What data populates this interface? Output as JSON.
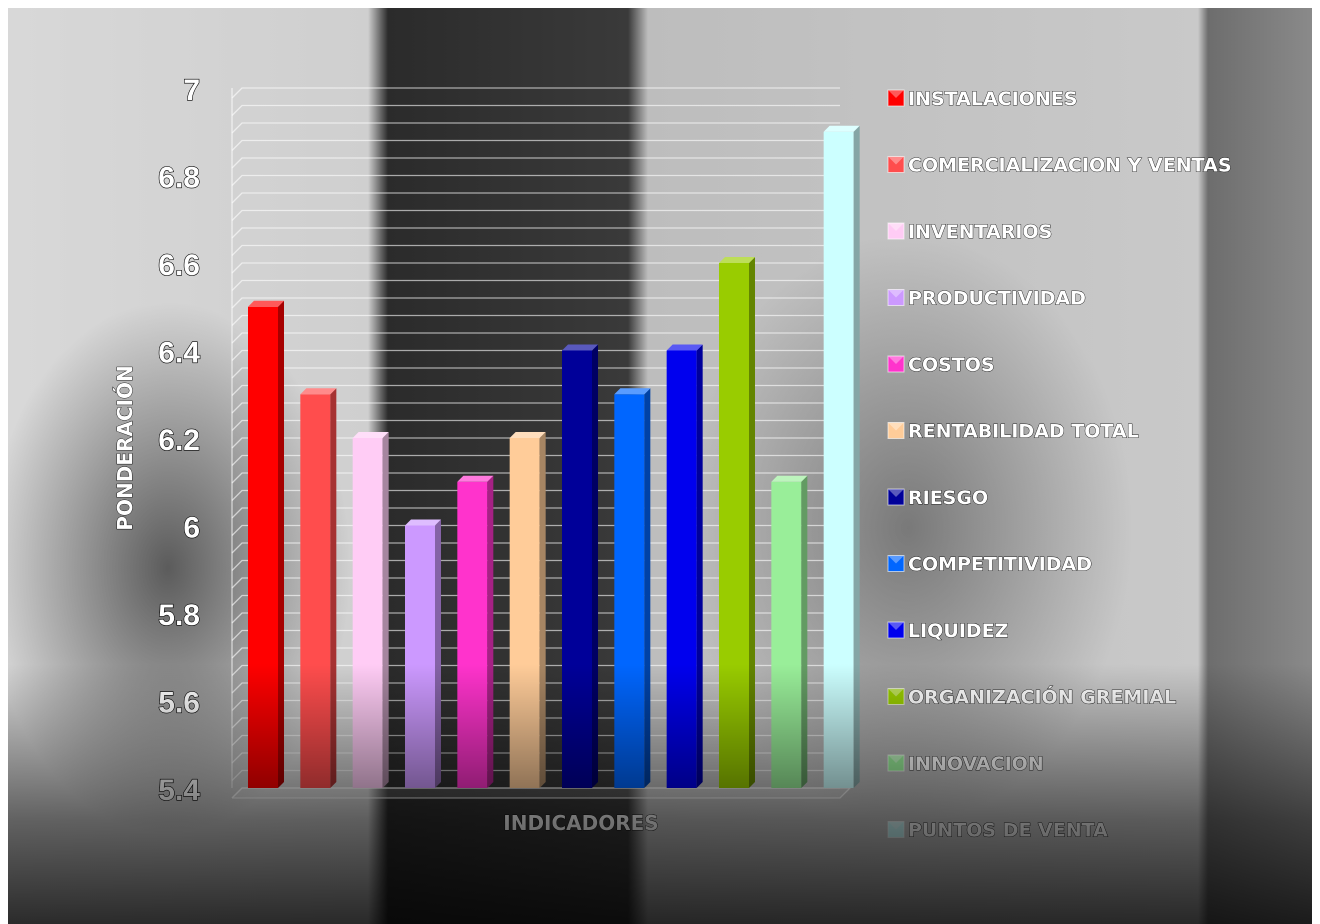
{
  "chart_data": {
    "type": "bar",
    "style": "3d-columns",
    "background": "grayscale photograph",
    "xlabel": "INDICADORES",
    "ylabel": "PONDERACIÓN",
    "ylim": [
      5.4,
      7
    ],
    "yticks": [
      "5.4",
      "5.6",
      "5.8",
      "6",
      "6.2",
      "6.4",
      "6.6",
      "6.8",
      "7"
    ],
    "grid": true,
    "legend_position": "right",
    "series": [
      {
        "name": "INSTALACIONES",
        "value": 6.5,
        "color": "#ff0000"
      },
      {
        "name": "COMERCIALIZACION Y VENTAS",
        "value": 6.3,
        "color": "#ff4d4d"
      },
      {
        "name": "INVENTARIOS",
        "value": 6.2,
        "color": "#ffccf5"
      },
      {
        "name": "PRODUCTIVIDAD",
        "value": 6.0,
        "color": "#cc99ff"
      },
      {
        "name": "COSTOS",
        "value": 6.1,
        "color": "#ff33cc"
      },
      {
        "name": "RENTABILIDAD TOTAL",
        "value": 6.2,
        "color": "#ffcc99"
      },
      {
        "name": "RIESGO",
        "value": 6.4,
        "color": "#000099"
      },
      {
        "name": "COMPETITIVIDAD",
        "value": 6.3,
        "color": "#0066ff"
      },
      {
        "name": "LIQUIDEZ",
        "value": 6.4,
        "color": "#0000ee"
      },
      {
        "name": "ORGANIZACIÓN GREMIAL",
        "value": 6.6,
        "color": "#99cc00"
      },
      {
        "name": "INNOVACION",
        "value": 6.1,
        "color": "#99ee99"
      },
      {
        "name": "PUNTOS DE VENTA",
        "value": 6.9,
        "color": "#ccffff"
      }
    ]
  }
}
